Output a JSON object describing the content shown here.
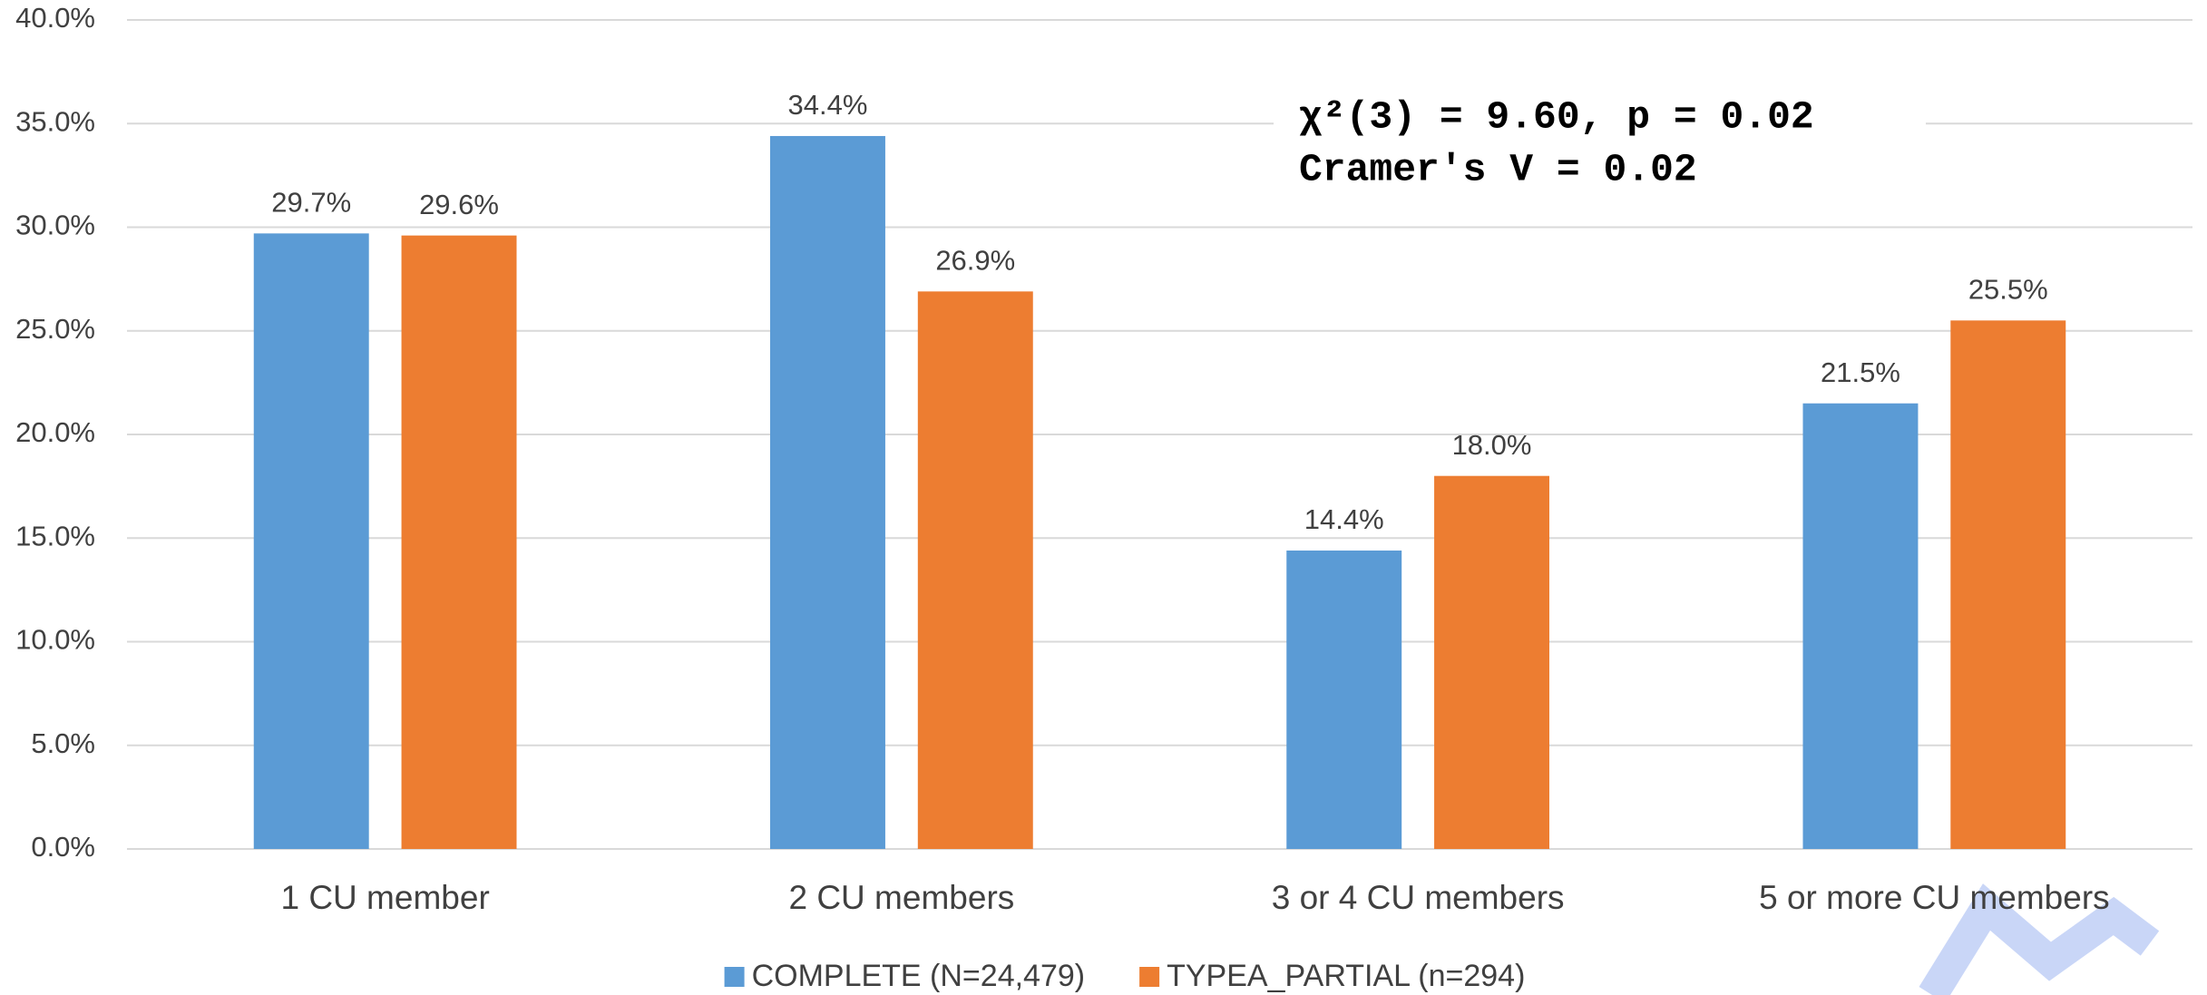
{
  "chart_data": {
    "type": "bar",
    "categories": [
      "1 CU member",
      "2 CU members",
      "3 or 4 CU members",
      "5 or more CU members"
    ],
    "series": [
      {
        "name": "COMPLETE (N=24,479)",
        "color": "#5b9bd5",
        "values": [
          29.7,
          34.4,
          14.4,
          21.5
        ],
        "value_labels": [
          "29.7%",
          "34.4%",
          "14.4%",
          "21.5%"
        ]
      },
      {
        "name": "TYPEA_PARTIAL (n=294)",
        "color": "#ed7d31",
        "values": [
          29.6,
          26.9,
          18.0,
          25.5
        ],
        "value_labels": [
          "29.6%",
          "26.9%",
          "18.0%",
          "25.5%"
        ]
      }
    ],
    "ylim": [
      0,
      40
    ],
    "yticks": [
      {
        "value": 0,
        "label": "0.0%"
      },
      {
        "value": 5,
        "label": "5.0%"
      },
      {
        "value": 10,
        "label": "10.0%"
      },
      {
        "value": 15,
        "label": "15.0%"
      },
      {
        "value": 20,
        "label": "20.0%"
      },
      {
        "value": 25,
        "label": "25.0%"
      },
      {
        "value": 30,
        "label": "30.0%"
      },
      {
        "value": 35,
        "label": "35.0%"
      },
      {
        "value": 40,
        "label": "40.0%"
      }
    ],
    "grid": true,
    "legend": "bottom",
    "annotations": [
      "χ²(3) = 9.60, p = 0.02",
      "Cramer's V = 0.02"
    ]
  }
}
